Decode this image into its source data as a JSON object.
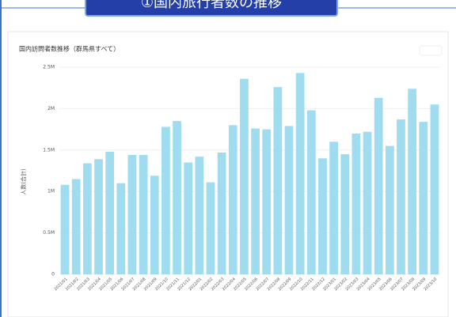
{
  "header": {
    "title": "①国内旅行者数の推移"
  },
  "chart_data": {
    "type": "bar",
    "title": "国内訪問者数推移（群馬県すべて）",
    "y_label": "人数(合計)",
    "categories": [
      "2021/01",
      "2021/02",
      "2021/03",
      "2021/04",
      "2021/05",
      "2021/06",
      "2021/07",
      "2021/08",
      "2021/09",
      "2021/10",
      "2021/11",
      "2021/12",
      "2022/01",
      "2022/02",
      "2022/03",
      "2022/04",
      "2022/05",
      "2022/06",
      "2022/07",
      "2022/08",
      "2022/09",
      "2022/10",
      "2022/11",
      "2022/12",
      "2023/01",
      "2023/02",
      "2023/03",
      "2023/04",
      "2023/05",
      "2023/06",
      "2023/07",
      "2023/08",
      "2023/09",
      "2023/10"
    ],
    "values": [
      1080000,
      1150000,
      1340000,
      1390000,
      1480000,
      1100000,
      1440000,
      1440000,
      1190000,
      1780000,
      1850000,
      1350000,
      1420000,
      1110000,
      1470000,
      1800000,
      2360000,
      1760000,
      1750000,
      2260000,
      1790000,
      2430000,
      1980000,
      1400000,
      1600000,
      1450000,
      1700000,
      1720000,
      2130000,
      1550000,
      1870000,
      2240000,
      1840000,
      2050000
    ],
    "color": "#9fdcf0",
    "ylim": [
      0,
      2500000
    ],
    "yticks": [
      0,
      {
        "value": 500000,
        "label": "0.5M"
      },
      {
        "value": 1000000,
        "label": "1M"
      },
      {
        "value": 1500000,
        "label": "1.5M"
      },
      {
        "value": 2000000,
        "label": "2M"
      },
      {
        "value": 2500000,
        "label": "2.5M"
      }
    ],
    "grid": true
  }
}
